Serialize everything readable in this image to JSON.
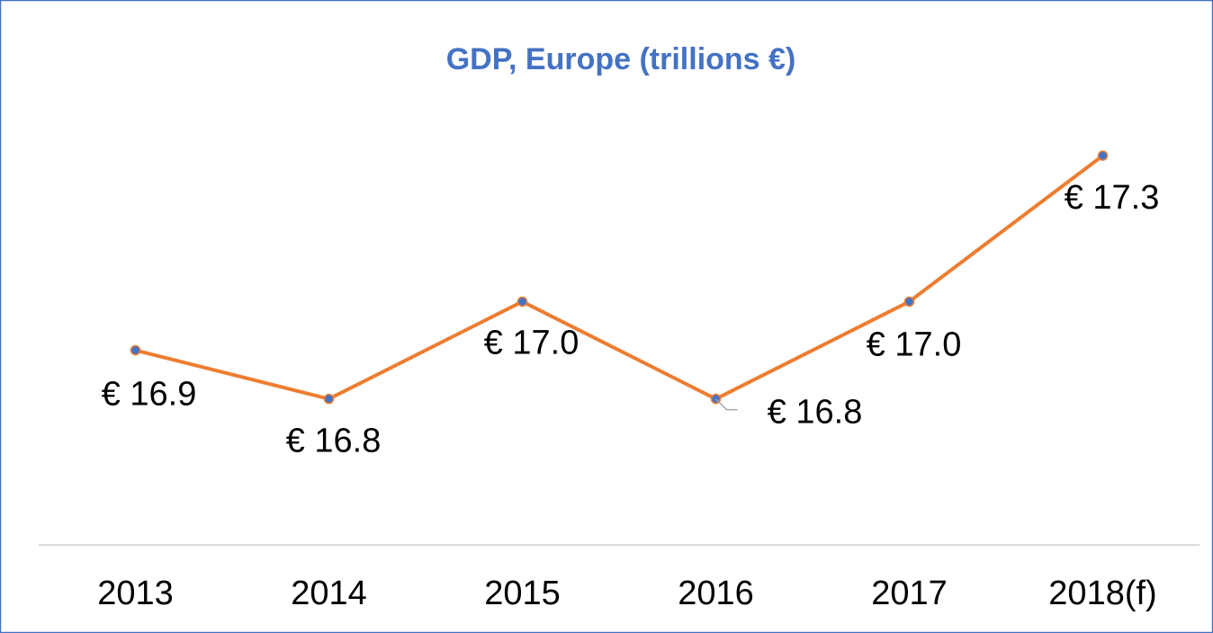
{
  "chart_data": {
    "type": "line",
    "title": "GDP, Europe (trillions €)",
    "categories": [
      "2013",
      "2014",
      "2015",
      "2016",
      "2017",
      "2018(f)"
    ],
    "series": [
      {
        "name": "GDP",
        "color": "#ed7d31",
        "marker_color": "#4472c4",
        "values": [
          16.9,
          16.8,
          17.0,
          16.8,
          17.0,
          17.3
        ],
        "value_labels": [
          "€ 16.9",
          "€ 16.8",
          "€ 17.0",
          "€ 16.8",
          "€ 17.0",
          "€ 17.3"
        ]
      }
    ],
    "ylim": [
      16.5,
      17.4
    ]
  }
}
